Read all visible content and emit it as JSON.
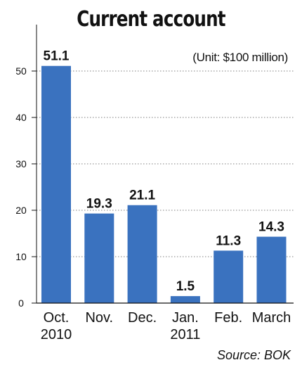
{
  "chart_data": {
    "type": "bar",
    "title": "Current account",
    "unit_note": "(Unit: $100 million)",
    "source": "Source: BOK",
    "categories": [
      [
        "Oct.",
        "2010"
      ],
      [
        "Nov."
      ],
      [
        "Dec."
      ],
      [
        "Jan.",
        "2011"
      ],
      [
        "Feb."
      ],
      [
        "March"
      ]
    ],
    "values": [
      51.1,
      19.3,
      21.1,
      1.5,
      11.3,
      14.3
    ],
    "data_labels": [
      "51.1",
      "19.3",
      "21.1",
      "1.5",
      "11.3",
      "14.3"
    ],
    "yticks": [
      0,
      10,
      20,
      30,
      40,
      50
    ],
    "ylim": [
      0,
      60
    ],
    "grid": true,
    "colors": {
      "bar": "#3a72bf",
      "grid": "#555555",
      "axis": "#111111"
    }
  }
}
